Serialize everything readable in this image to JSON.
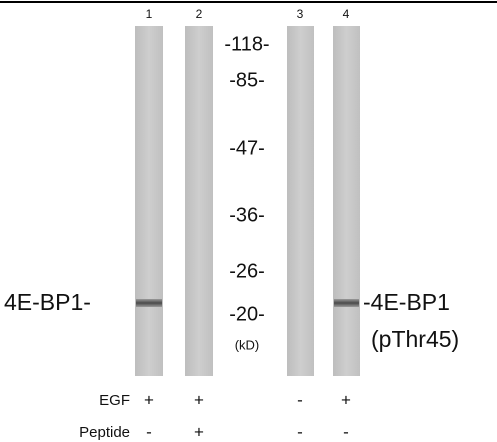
{
  "lanes": [
    "1",
    "2",
    "3",
    "4"
  ],
  "markers": [
    "-118-",
    "-85-",
    "-47-",
    "-36-",
    "-26-",
    "-20-"
  ],
  "unit": "(kD)",
  "left_label": "4E-BP1-",
  "right_label": {
    "line1": "-4E-BP1",
    "line2": "(pThr45)"
  },
  "conditions": [
    {
      "name": "EGF",
      "signs": [
        "+",
        "+",
        "-",
        "+"
      ]
    },
    {
      "name": "Peptide",
      "signs": [
        "-",
        "+",
        "-",
        "-"
      ]
    }
  ]
}
